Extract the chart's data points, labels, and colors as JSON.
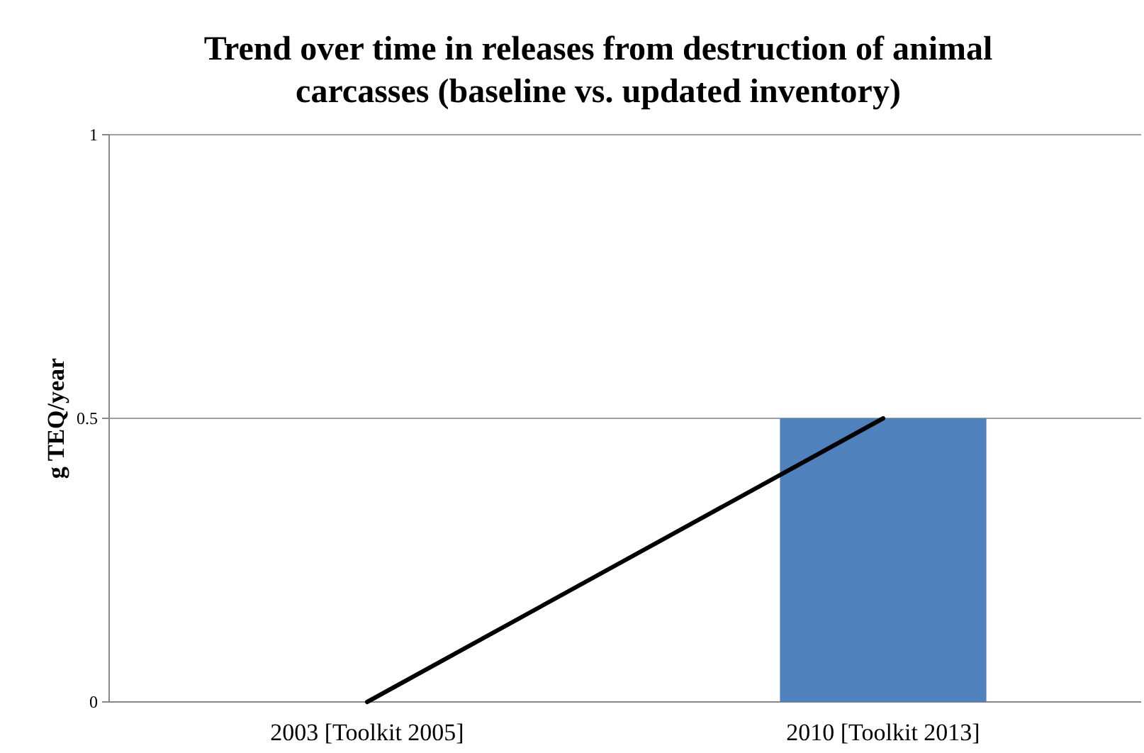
{
  "chart_data": {
    "type": "bar",
    "title": "Trend over time in releases from destruction of animal carcasses (baseline vs. updated inventory)",
    "ylabel": "g TEQ/year",
    "categories": [
      "2003 [Toolkit 2005]",
      "2010 [Toolkit 2013]"
    ],
    "ylim": [
      0,
      1
    ],
    "yticks": [
      0,
      0.5,
      1
    ],
    "grid": "y",
    "series": [
      {
        "color": "#4f81bd",
        "values": [
          0,
          0.5
        ]
      },
      {
        "type": "line",
        "color": "#000000",
        "values": [
          0,
          0.5
        ]
      }
    ]
  }
}
